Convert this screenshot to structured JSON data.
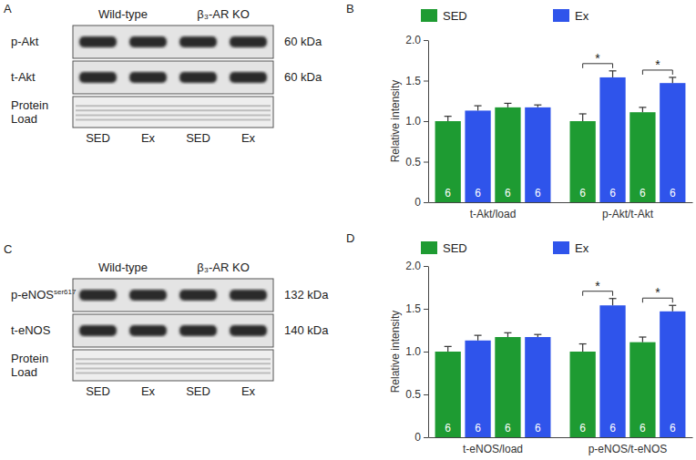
{
  "panel_labels": [
    "A",
    "B",
    "C",
    "D"
  ],
  "blots": [
    {
      "columns": [
        "Wild-type",
        "β₃-AR KO"
      ],
      "rows": [
        {
          "label": "p-Akt",
          "size": "60 kDa"
        },
        {
          "label": "t-Akt",
          "size": "60 kDa"
        },
        {
          "label": [
            "Protein",
            "Load"
          ]
        }
      ],
      "lanes": [
        "SED",
        "Ex",
        "SED",
        "Ex"
      ]
    },
    {
      "columns": [
        "Wild-type",
        "β₃-AR KO"
      ],
      "rows": [
        {
          "label": "p-eNOS",
          "superscript": "ser617",
          "size": "132 kDa"
        },
        {
          "label": "t-eNOS",
          "size": "140 kDa"
        },
        {
          "label": [
            "Protein",
            "Load"
          ]
        }
      ],
      "lanes": [
        "SED",
        "Ex",
        "SED",
        "Ex"
      ]
    }
  ],
  "chart_data": [
    {
      "type": "bar",
      "y_label": "Relative intensity",
      "categories": [
        "t-Akt/load",
        "p-Akt/t-Akt"
      ],
      "series": [
        {
          "name": "SED",
          "color": "#1e9b32",
          "values": [
            1.0,
            1.0
          ],
          "errors": [
            0.06,
            0.09
          ],
          "n": [
            6,
            6
          ]
        },
        {
          "name": "Ex",
          "color": "#2f54eb",
          "values": [
            1.13,
            1.54
          ],
          "errors": [
            0.06,
            0.08
          ],
          "n": [
            6,
            6
          ]
        },
        {
          "name": "SED",
          "color": "#1e9b32",
          "values": [
            1.17,
            1.11
          ],
          "errors": [
            0.05,
            0.06
          ],
          "n": [
            6,
            6
          ]
        },
        {
          "name": "Ex",
          "color": "#2f54eb",
          "values": [
            1.17,
            1.47
          ],
          "errors": [
            0.03,
            0.07
          ],
          "n": [
            6,
            6
          ]
        }
      ],
      "ylim": [
        0,
        2
      ],
      "yticks": [
        0,
        0.5,
        {
          "value": 1,
          "label": "1.0"
        },
        1.5,
        {
          "value": 2,
          "label": "2.0"
        }
      ],
      "legend": "top",
      "annotations": [
        {
          "text": "*",
          "category": "p-Akt/t-Akt",
          "series": [
            0,
            1
          ]
        },
        {
          "text": "*",
          "category": "p-Akt/t-Akt",
          "series": [
            2,
            3
          ]
        }
      ]
    },
    {
      "type": "bar",
      "y_label": "Relative intensity",
      "categories": [
        "t-eNOS/load",
        "p-eNOS/t-eNOS"
      ],
      "series": [
        {
          "name": "SED",
          "color": "#1e9b32",
          "values": [
            1.0,
            1.0
          ],
          "errors": [
            0.06,
            0.09
          ],
          "n": [
            6,
            6
          ]
        },
        {
          "name": "Ex",
          "color": "#2f54eb",
          "values": [
            1.13,
            1.54
          ],
          "errors": [
            0.06,
            0.08
          ],
          "n": [
            6,
            6
          ]
        },
        {
          "name": "SED",
          "color": "#1e9b32",
          "values": [
            1.17,
            1.11
          ],
          "errors": [
            0.05,
            0.06
          ],
          "n": [
            6,
            6
          ]
        },
        {
          "name": "Ex",
          "color": "#2f54eb",
          "values": [
            1.17,
            1.47
          ],
          "errors": [
            0.03,
            0.07
          ],
          "n": [
            6,
            6
          ]
        }
      ],
      "ylim": [
        0,
        2
      ],
      "yticks": [
        0,
        0.5,
        {
          "value": 1,
          "label": "1.0"
        },
        1.5,
        {
          "value": 2,
          "label": "2.0"
        }
      ],
      "legend": "top",
      "annotations": [
        {
          "text": "*",
          "category": "p-eNOS/t-eNOS",
          "series": [
            0,
            1
          ]
        },
        {
          "text": "*",
          "category": "p-eNOS/t-eNOS",
          "series": [
            2,
            3
          ]
        }
      ]
    }
  ]
}
